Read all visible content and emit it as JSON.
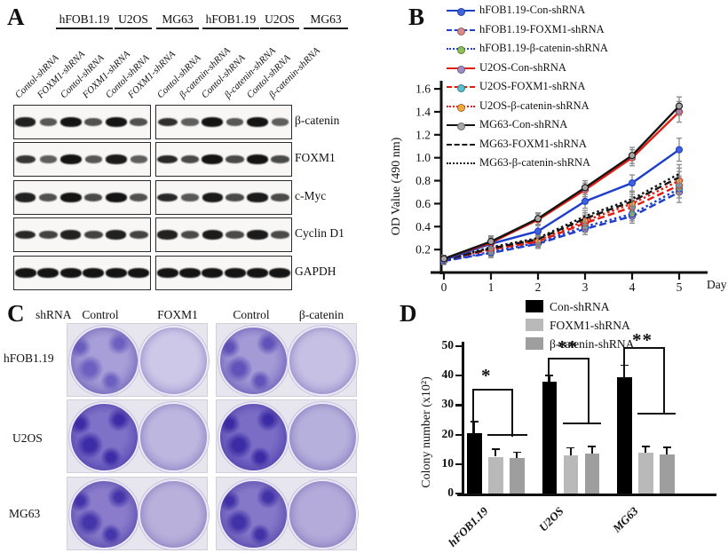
{
  "panel_a": {
    "label": "A",
    "cell_line_headers": [
      "hFOB1.19",
      "U2OS",
      "MG63",
      "hFOB1.19",
      "U2OS",
      "MG63"
    ],
    "lane_labels": [
      "Contol-shRNA",
      "FOXM1-shRNA",
      "Contol-shRNA",
      "FOXM1-shRNA",
      "Contol-shRNA",
      "FOXM1-shRNA",
      "Contol-shRNA",
      "β-catenin-shRNA",
      "Contol-shRNA",
      "β-catenin-shRNA",
      "Contol-shRNA",
      "β-catenin-shRNA"
    ],
    "blot_rows": [
      {
        "protein": "β-catenin",
        "left": [
          0.9,
          0.5,
          1.0,
          0.55,
          1.0,
          0.55
        ],
        "right": [
          0.8,
          0.45,
          1.0,
          0.5,
          1.0,
          0.45
        ]
      },
      {
        "protein": "FOXM1",
        "left": [
          0.75,
          0.45,
          1.0,
          0.5,
          0.95,
          0.45
        ],
        "right": [
          0.85,
          0.6,
          1.0,
          0.6,
          1.0,
          0.6
        ]
      },
      {
        "protein": "c-Myc",
        "left": [
          0.9,
          0.55,
          1.0,
          0.6,
          1.0,
          0.55
        ],
        "right": [
          0.85,
          0.5,
          0.95,
          0.6,
          0.95,
          0.6
        ]
      },
      {
        "protein": "Cyclin D1",
        "left": [
          0.85,
          0.65,
          0.9,
          0.65,
          0.9,
          0.65
        ],
        "right": [
          0.9,
          0.6,
          0.95,
          0.6,
          0.95,
          0.6
        ]
      },
      {
        "protein": "GAPDH",
        "left": [
          1,
          1,
          1,
          1,
          1,
          1
        ],
        "right": [
          1,
          1,
          1,
          1,
          1,
          1
        ]
      }
    ]
  },
  "panel_b": {
    "label": "B"
  },
  "panel_c": {
    "label": "C",
    "header": {
      "shrna": "shRNA",
      "cols": [
        "Control",
        "FOXM1",
        "Control",
        "β-catenin"
      ]
    },
    "rows": [
      {
        "cell_line": "hFOB1.19",
        "wells": [
          {
            "shRNA": "Control",
            "inner": "#a89fd8",
            "mid": "#8d83cc",
            "blotch": "#6b5fc0"
          },
          {
            "shRNA": "FOXM1",
            "inner": "#cdc8e8",
            "mid": "#b7b0de"
          },
          {
            "shRNA": "Control",
            "inner": "#a39ad6",
            "mid": "#887dca",
            "blotch": "#6052b8"
          },
          {
            "shRNA": "β-catenin",
            "inner": "#c6c0e4",
            "mid": "#b0a8da"
          }
        ]
      },
      {
        "cell_line": "U2OS",
        "wells": [
          {
            "shRNA": "Control",
            "inner": "#7e71c8",
            "mid": "#6557bc",
            "blotch": "#3c2ca6"
          },
          {
            "shRNA": "FOXM1",
            "inner": "#bdb7e0",
            "mid": "#a8a1d6"
          },
          {
            "shRNA": "Control",
            "inner": "#7b6dc6",
            "mid": "#6254ba",
            "blotch": "#3b2ba4"
          },
          {
            "shRNA": "β-catenin",
            "inner": "#b6b0dc",
            "mid": "#a29ad2"
          }
        ]
      },
      {
        "cell_line": "MG63",
        "wells": [
          {
            "shRNA": "Control",
            "inner": "#8a7cca",
            "mid": "#7163be",
            "blotch": "#4435aa"
          },
          {
            "shRNA": "FOXM1",
            "inner": "#b9b1dc",
            "mid": "#a79ed2"
          },
          {
            "shRNA": "Control",
            "inner": "#8678c8",
            "mid": "#6d5fbc",
            "blotch": "#4132a8"
          },
          {
            "shRNA": "β-catenin",
            "inner": "#b4abda",
            "mid": "#a299d0"
          }
        ]
      }
    ]
  },
  "panel_d": {
    "label": "D"
  },
  "chart_data": [
    {
      "panel": "B",
      "type": "line",
      "xlabel": "Day",
      "ylabel": "OD Value (490 nm)",
      "x": [
        0,
        1,
        2,
        3,
        4,
        5
      ],
      "xticks": [
        0,
        1,
        2,
        3,
        4,
        5
      ],
      "yticks": [
        0.2,
        0.4,
        0.6,
        0.8,
        1.0,
        1.2,
        1.4,
        1.6
      ],
      "ylim": [
        0,
        1.7
      ],
      "legend_position": "upper-left",
      "grid": false,
      "errorbar_color": "#8a8a8a",
      "series": [
        {
          "name": "hFOB1.19-Con-shRNA",
          "color": "#1e3dcb",
          "dash": "solid",
          "marker": "#3f63e0",
          "values": [
            0.11,
            0.25,
            0.36,
            0.62,
            0.78,
            1.07
          ],
          "err": [
            0.03,
            0.05,
            0.05,
            0.06,
            0.07,
            0.1
          ]
        },
        {
          "name": "hFOB1.19-FOXM1-shRNA",
          "color": "#1e3dcb",
          "dash": "dashed",
          "marker": "#d98b8b",
          "values": [
            0.1,
            0.17,
            0.25,
            0.38,
            0.49,
            0.7
          ],
          "err": [
            0.03,
            0.04,
            0.04,
            0.05,
            0.06,
            0.09
          ]
        },
        {
          "name": "hFOB1.19-β-catenin-shRNA",
          "color": "#1e3dcb",
          "dash": "dotted",
          "marker": "#8fbf57",
          "values": [
            0.1,
            0.18,
            0.26,
            0.4,
            0.51,
            0.73
          ],
          "err": [
            0.03,
            0.04,
            0.04,
            0.05,
            0.06,
            0.08
          ]
        },
        {
          "name": "U2OS-Con-shRNA",
          "color": "#e01d10",
          "dash": "solid",
          "marker": "#9d8cc8",
          "values": [
            0.12,
            0.26,
            0.46,
            0.72,
            1.0,
            1.4
          ],
          "err": [
            0.03,
            0.05,
            0.05,
            0.06,
            0.07,
            0.09
          ]
        },
        {
          "name": "U2OS-FOXM1-shRNA",
          "color": "#e01d10",
          "dash": "dashed",
          "marker": "#57c0ce",
          "values": [
            0.11,
            0.2,
            0.27,
            0.43,
            0.57,
            0.76
          ],
          "err": [
            0.03,
            0.04,
            0.04,
            0.05,
            0.06,
            0.08
          ]
        },
        {
          "name": "U2OS-β-catenin-shRNA",
          "color": "#e01d10",
          "dash": "dotted",
          "marker": "#f2a93f",
          "values": [
            0.11,
            0.21,
            0.28,
            0.45,
            0.6,
            0.8
          ],
          "err": [
            0.03,
            0.04,
            0.04,
            0.05,
            0.06,
            0.08
          ]
        },
        {
          "name": "MG63-Con-shRNA",
          "color": "#141414",
          "dash": "solid",
          "marker": "#a6a6a6",
          "values": [
            0.12,
            0.27,
            0.47,
            0.74,
            1.02,
            1.45
          ],
          "err": [
            0.03,
            0.05,
            0.05,
            0.06,
            0.07,
            0.08
          ]
        },
        {
          "name": "MG63-FOXM1-shRNA",
          "color": "#141414",
          "dash": "dashed",
          "marker": null,
          "values": [
            0.11,
            0.21,
            0.29,
            0.47,
            0.62,
            0.83
          ],
          "err": [
            0.03,
            0.04,
            0.04,
            0.05,
            0.06,
            0.08
          ]
        },
        {
          "name": "MG63-β-catenin-shRNA",
          "color": "#141414",
          "dash": "dotted",
          "marker": null,
          "values": [
            0.11,
            0.22,
            0.3,
            0.49,
            0.64,
            0.86
          ],
          "err": [
            0.03,
            0.04,
            0.04,
            0.05,
            0.06,
            0.08
          ]
        }
      ]
    },
    {
      "panel": "D",
      "type": "bar",
      "categories": [
        "hFOB1.19",
        "U2OS",
        "MG63"
      ],
      "ylabel": "Colony number (x10²)",
      "ylim": [
        0,
        50
      ],
      "yticks": [
        0,
        10,
        20,
        30,
        40,
        50
      ],
      "legend_position": "top",
      "series": [
        {
          "name": "Con-shRNA",
          "color": "#000000",
          "values": [
            20.5,
            38.0,
            39.5
          ],
          "err": [
            4.0,
            2.0,
            4.0
          ]
        },
        {
          "name": "FOXM1-shRNA",
          "color": "#b9b9b9",
          "values": [
            12.5,
            13.0,
            13.8
          ],
          "err": [
            2.5,
            2.5,
            2.2
          ]
        },
        {
          "name": "β-catenin-shRNA",
          "color": "#9e9e9e",
          "values": [
            12.0,
            13.5,
            13.2
          ],
          "err": [
            2.0,
            2.5,
            2.5
          ]
        }
      ],
      "significance": [
        {
          "group": "hFOB1.19",
          "text": "*"
        },
        {
          "group": "U2OS",
          "text": "**"
        },
        {
          "group": "MG63",
          "text": "**"
        }
      ]
    }
  ]
}
